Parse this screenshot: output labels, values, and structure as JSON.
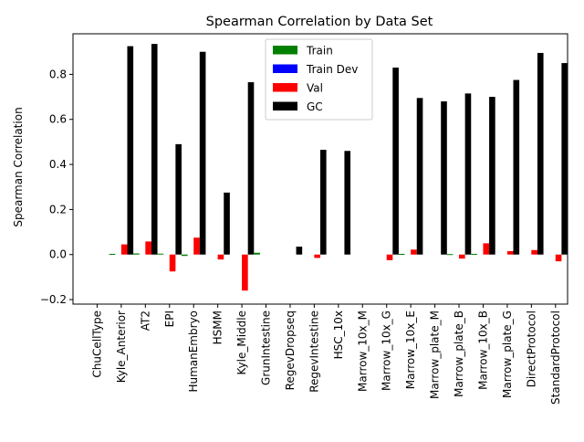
{
  "chart_data": {
    "type": "bar",
    "title": "Spearman Correlation by Data Set",
    "xlabel": "",
    "ylabel": "Spearman Correlation",
    "ylim": [
      -0.22,
      0.98
    ],
    "yticks": [
      -0.2,
      0.0,
      0.2,
      0.4,
      0.6,
      0.8
    ],
    "ytick_labels": [
      "−0.2",
      "0.0",
      "0.2",
      "0.4",
      "0.6",
      "0.8"
    ],
    "grid": false,
    "legend_position": "top-center",
    "categories": [
      "ChuCellType",
      "Kyle_Anterior",
      "AT2",
      "EPI",
      "HumanEmbryo",
      "HSMM",
      "Kyle_Middle",
      "GrunIntestine",
      "RegevDropseq",
      "RegevIntestine",
      "HSC_10x",
      "Marrow_10x_M",
      "Marrow_10x_G",
      "Marrow_10x_E",
      "Marrow_plate_M",
      "Marrow_plate_B",
      "Marrow_10x_B",
      "Marrow_plate_G",
      "DirectProtocol",
      "StandardProtocol"
    ],
    "series": [
      {
        "name": "Train",
        "color": "#008000",
        "values": [
          0,
          0.003,
          0.005,
          0.004,
          -0.006,
          0,
          0,
          0.008,
          0,
          0,
          0,
          0,
          0,
          0.003,
          0,
          0.002,
          0.003,
          0,
          0,
          0
        ]
      },
      {
        "name": "Train Dev",
        "color": "#0000ff",
        "values": [
          0,
          0,
          0,
          0,
          0,
          0,
          0,
          0,
          0,
          0,
          0,
          0,
          0,
          0,
          0,
          0,
          0,
          0,
          0,
          0
        ]
      },
      {
        "name": "Val",
        "color": "#ff0000",
        "values": [
          0,
          0.045,
          0.058,
          -0.075,
          0.075,
          -0.022,
          -0.16,
          0,
          0,
          -0.015,
          0,
          0,
          -0.025,
          0.022,
          0,
          -0.018,
          0.05,
          0.015,
          0.02,
          -0.03
        ]
      },
      {
        "name": "GC",
        "color": "#000000",
        "values": [
          0,
          0.925,
          0.935,
          0.49,
          0.9,
          0.275,
          0.765,
          0,
          0.035,
          0.465,
          0.46,
          0,
          0.83,
          0.695,
          0.68,
          0.715,
          0.7,
          0.775,
          0.895,
          0.85
        ]
      }
    ]
  }
}
